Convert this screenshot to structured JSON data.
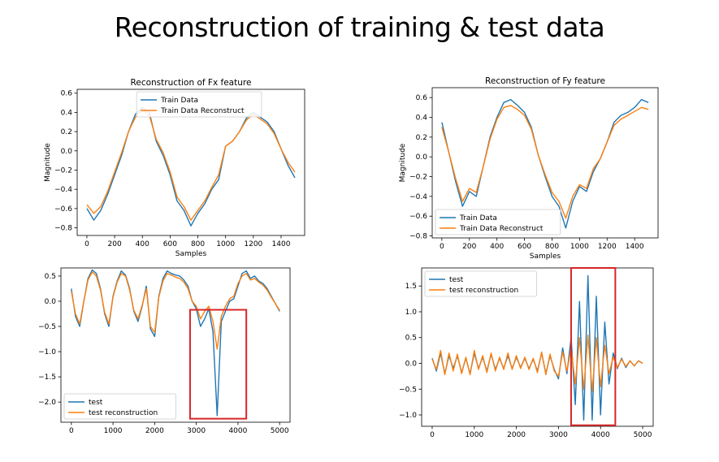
{
  "slide": {
    "title": "Reconstruction of training & test data"
  },
  "colors": {
    "series1": "#1f77b4",
    "series2": "#ff7f0e",
    "highlight": "#d62728"
  },
  "chart_data": [
    {
      "type": "line",
      "title": "Reconstruction of Fx feature",
      "xlabel": "Samples",
      "ylabel": "Magnitude",
      "xlim": [
        -70,
        1570
      ],
      "ylim": [
        -0.88,
        0.64
      ],
      "xticks": [
        0,
        200,
        400,
        600,
        800,
        1000,
        1200,
        1400
      ],
      "yticks": [
        -0.8,
        -0.6,
        -0.4,
        -0.2,
        0.0,
        0.2,
        0.4,
        0.6
      ],
      "ytick_labels": [
        "−0.8",
        "−0.6",
        "−0.4",
        "−0.2",
        "0.0",
        "0.2",
        "0.4",
        "0.6"
      ],
      "legend_position": "upper-center",
      "grid": false,
      "highlight_box": null,
      "series": [
        {
          "name": "Train Data",
          "color": "#1f77b4",
          "x": [
            0,
            50,
            100,
            150,
            200,
            250,
            300,
            350,
            400,
            450,
            500,
            550,
            600,
            650,
            700,
            750,
            800,
            850,
            900,
            950,
            1000,
            1050,
            1100,
            1150,
            1200,
            1250,
            1300,
            1350,
            1400,
            1450,
            1500
          ],
          "y": [
            -0.6,
            -0.72,
            -0.62,
            -0.45,
            -0.25,
            -0.05,
            0.2,
            0.38,
            0.45,
            0.4,
            0.1,
            -0.05,
            -0.25,
            -0.52,
            -0.62,
            -0.78,
            -0.65,
            -0.55,
            -0.4,
            -0.3,
            0.05,
            0.1,
            0.2,
            0.34,
            0.4,
            0.35,
            0.3,
            0.2,
            0.02,
            -0.15,
            -0.28
          ]
        },
        {
          "name": "Train Data Reconstruct",
          "color": "#ff7f0e",
          "x": [
            0,
            50,
            100,
            150,
            200,
            250,
            300,
            350,
            400,
            450,
            500,
            550,
            600,
            650,
            700,
            750,
            800,
            850,
            900,
            950,
            1000,
            1050,
            1100,
            1150,
            1200,
            1250,
            1300,
            1350,
            1400,
            1450,
            1500
          ],
          "y": [
            -0.56,
            -0.65,
            -0.58,
            -0.42,
            -0.22,
            -0.02,
            0.2,
            0.35,
            0.43,
            0.37,
            0.12,
            -0.02,
            -0.22,
            -0.48,
            -0.58,
            -0.72,
            -0.62,
            -0.52,
            -0.38,
            -0.25,
            0.05,
            0.1,
            0.2,
            0.32,
            0.38,
            0.33,
            0.28,
            0.18,
            0.02,
            -0.12,
            -0.22
          ]
        }
      ]
    },
    {
      "type": "line",
      "title": "Reconstruction of Fy feature",
      "xlabel": "Samples",
      "ylabel": "Magnitude",
      "xlim": [
        -70,
        1570
      ],
      "ylim": [
        -0.82,
        0.7
      ],
      "xticks": [
        0,
        200,
        400,
        600,
        800,
        1000,
        1200,
        1400
      ],
      "yticks": [
        -0.8,
        -0.6,
        -0.4,
        -0.2,
        0.0,
        0.2,
        0.4,
        0.6
      ],
      "ytick_labels": [
        "−0.8",
        "−0.6",
        "−0.4",
        "−0.2",
        "0.0",
        "0.2",
        "0.4",
        "0.6"
      ],
      "legend_position": "lower-left",
      "grid": false,
      "highlight_box": null,
      "series": [
        {
          "name": "Train Data",
          "color": "#1f77b4",
          "x": [
            0,
            50,
            100,
            150,
            200,
            250,
            300,
            350,
            400,
            450,
            500,
            550,
            600,
            650,
            700,
            750,
            800,
            850,
            900,
            950,
            1000,
            1050,
            1100,
            1150,
            1200,
            1250,
            1300,
            1350,
            1400,
            1450,
            1500
          ],
          "y": [
            0.35,
            0.05,
            -0.25,
            -0.5,
            -0.35,
            -0.4,
            -0.1,
            0.2,
            0.4,
            0.55,
            0.58,
            0.52,
            0.45,
            0.3,
            0.02,
            -0.2,
            -0.4,
            -0.5,
            -0.72,
            -0.45,
            -0.3,
            -0.35,
            -0.15,
            -0.02,
            0.15,
            0.35,
            0.42,
            0.45,
            0.5,
            0.58,
            0.55
          ]
        },
        {
          "name": "Train Data Reconstruct",
          "color": "#ff7f0e",
          "x": [
            0,
            50,
            100,
            150,
            200,
            250,
            300,
            350,
            400,
            450,
            500,
            550,
            600,
            650,
            700,
            750,
            800,
            850,
            900,
            950,
            1000,
            1050,
            1100,
            1150,
            1200,
            1250,
            1300,
            1350,
            1400,
            1450,
            1500
          ],
          "y": [
            0.3,
            0.05,
            -0.22,
            -0.45,
            -0.32,
            -0.36,
            -0.1,
            0.18,
            0.38,
            0.5,
            0.52,
            0.48,
            0.42,
            0.28,
            0.02,
            -0.18,
            -0.36,
            -0.45,
            -0.62,
            -0.4,
            -0.28,
            -0.32,
            -0.12,
            -0.02,
            0.15,
            0.32,
            0.38,
            0.42,
            0.46,
            0.5,
            0.48
          ]
        }
      ]
    },
    {
      "type": "line",
      "title": "",
      "xlabel": "",
      "ylabel": "",
      "xlim": [
        -250,
        5250
      ],
      "ylim": [
        -2.4,
        0.66
      ],
      "xticks": [
        0,
        1000,
        2000,
        3000,
        4000,
        5000
      ],
      "yticks": [
        -2.0,
        -1.5,
        -1.0,
        -0.5,
        0.0,
        0.5
      ],
      "ytick_labels": [
        "−2.0",
        "−1.5",
        "−1.0",
        "−0.5",
        "0.0",
        "0.5"
      ],
      "legend_position": "lower-left",
      "grid": false,
      "highlight_box": {
        "x": [
          2850,
          4200
        ],
        "y": [
          -2.33,
          -0.17
        ]
      },
      "series": [
        {
          "name": "test",
          "color": "#1f77b4",
          "x": [
            0,
            100,
            200,
            300,
            400,
            500,
            600,
            700,
            800,
            900,
            1000,
            1100,
            1200,
            1300,
            1400,
            1500,
            1600,
            1700,
            1800,
            1900,
            2000,
            2100,
            2200,
            2300,
            2400,
            2500,
            2600,
            2700,
            2800,
            2900,
            3000,
            3100,
            3200,
            3300,
            3400,
            3500,
            3600,
            3700,
            3800,
            3900,
            4000,
            4100,
            4200,
            4300,
            4400,
            4500,
            4600,
            4700,
            4800,
            4900,
            5000
          ],
          "y": [
            0.25,
            -0.3,
            -0.5,
            0.0,
            0.45,
            0.62,
            0.55,
            0.25,
            -0.25,
            -0.5,
            0.1,
            0.4,
            0.6,
            0.52,
            0.25,
            -0.2,
            -0.4,
            -0.1,
            0.3,
            -0.55,
            -0.7,
            0.1,
            0.45,
            0.6,
            0.55,
            0.52,
            0.5,
            0.42,
            0.3,
            0.0,
            -0.15,
            -0.5,
            -0.35,
            -0.15,
            -0.6,
            -2.27,
            -0.4,
            -0.2,
            0.0,
            0.05,
            0.3,
            0.55,
            0.6,
            0.45,
            0.5,
            0.4,
            0.35,
            0.25,
            0.1,
            -0.05,
            -0.2
          ]
        },
        {
          "name": "test reconstruction",
          "color": "#ff7f0e",
          "x": [
            0,
            100,
            200,
            300,
            400,
            500,
            600,
            700,
            800,
            900,
            1000,
            1100,
            1200,
            1300,
            1400,
            1500,
            1600,
            1700,
            1800,
            1900,
            2000,
            2100,
            2200,
            2300,
            2400,
            2500,
            2600,
            2700,
            2800,
            2900,
            3000,
            3100,
            3200,
            3300,
            3400,
            3500,
            3600,
            3700,
            3800,
            3900,
            4000,
            4100,
            4200,
            4300,
            4400,
            4500,
            4600,
            4700,
            4800,
            4900,
            5000
          ],
          "y": [
            0.2,
            -0.25,
            -0.45,
            0.0,
            0.42,
            0.58,
            0.5,
            0.22,
            -0.22,
            -0.45,
            0.08,
            0.38,
            0.55,
            0.5,
            0.22,
            -0.18,
            -0.35,
            -0.08,
            0.25,
            -0.5,
            -0.62,
            0.08,
            0.4,
            0.55,
            0.52,
            0.48,
            0.45,
            0.38,
            0.25,
            0.0,
            -0.1,
            -0.35,
            -0.2,
            -0.1,
            -0.4,
            -0.95,
            -0.3,
            -0.1,
            0.05,
            0.1,
            0.35,
            0.5,
            0.55,
            0.42,
            0.45,
            0.38,
            0.32,
            0.22,
            0.08,
            -0.05,
            -0.18
          ]
        }
      ]
    },
    {
      "type": "line",
      "title": "",
      "xlabel": "",
      "ylabel": "",
      "xlim": [
        -250,
        5250
      ],
      "ylim": [
        -1.22,
        1.85
      ],
      "xticks": [
        0,
        1000,
        2000,
        3000,
        4000,
        5000
      ],
      "yticks": [
        -1.0,
        -0.5,
        0.0,
        0.5,
        1.0,
        1.5
      ],
      "ytick_labels": [
        "−1.0",
        "−0.5",
        "0.0",
        "0.5",
        "1.0",
        "1.5"
      ],
      "legend_position": "upper-left",
      "grid": false,
      "highlight_box": {
        "x": [
          3300,
          4350
        ],
        "y": [
          -1.2,
          1.85
        ]
      },
      "series": [
        {
          "name": "test",
          "color": "#1f77b4",
          "x": [
            0,
            100,
            200,
            300,
            400,
            500,
            600,
            700,
            800,
            900,
            1000,
            1100,
            1200,
            1300,
            1400,
            1500,
            1600,
            1700,
            1800,
            1900,
            2000,
            2100,
            2200,
            2300,
            2400,
            2500,
            2600,
            2700,
            2800,
            2900,
            3000,
            3100,
            3200,
            3300,
            3400,
            3500,
            3600,
            3700,
            3800,
            3900,
            4000,
            4100,
            4200,
            4300,
            4400,
            4500,
            4600,
            4700,
            4800,
            4900,
            5000
          ],
          "y": [
            0.1,
            -0.15,
            0.2,
            -0.2,
            0.15,
            -0.1,
            0.15,
            -0.18,
            0.1,
            -0.2,
            0.2,
            -0.1,
            0.12,
            -0.15,
            0.18,
            -0.12,
            0.1,
            -0.1,
            0.15,
            -0.1,
            0.12,
            -0.08,
            0.1,
            -0.1,
            0.08,
            -0.15,
            0.2,
            -0.2,
            0.15,
            -0.12,
            -0.3,
            0.3,
            -0.2,
            0.5,
            -0.8,
            1.2,
            -1.1,
            1.7,
            -1.1,
            1.3,
            -1.0,
            0.8,
            -0.4,
            0.2,
            -0.1,
            0.1,
            -0.08,
            0.05,
            -0.05,
            0.05,
            0.0
          ]
        },
        {
          "name": "test reconstruction",
          "color": "#ff7f0e",
          "x": [
            0,
            100,
            200,
            300,
            400,
            500,
            600,
            700,
            800,
            900,
            1000,
            1100,
            1200,
            1300,
            1400,
            1500,
            1600,
            1700,
            1800,
            1900,
            2000,
            2100,
            2200,
            2300,
            2400,
            2500,
            2600,
            2700,
            2800,
            2900,
            3000,
            3100,
            3200,
            3300,
            3400,
            3500,
            3600,
            3700,
            3800,
            3900,
            4000,
            4100,
            4200,
            4300,
            4400,
            4500,
            4600,
            4700,
            4800,
            4900,
            5000
          ],
          "y": [
            0.08,
            -0.12,
            0.25,
            -0.22,
            0.2,
            -0.15,
            0.18,
            -0.2,
            0.12,
            -0.22,
            0.25,
            -0.12,
            0.15,
            -0.18,
            0.2,
            -0.15,
            0.12,
            -0.12,
            0.2,
            -0.12,
            0.15,
            -0.1,
            0.12,
            -0.12,
            0.1,
            -0.18,
            0.22,
            -0.22,
            0.18,
            -0.15,
            -0.25,
            0.22,
            -0.15,
            0.3,
            -0.4,
            0.5,
            -0.5,
            0.55,
            -0.55,
            0.5,
            -0.45,
            0.35,
            -0.2,
            0.12,
            -0.08,
            0.08,
            -0.06,
            0.05,
            -0.05,
            0.05,
            0.0
          ]
        }
      ]
    }
  ]
}
